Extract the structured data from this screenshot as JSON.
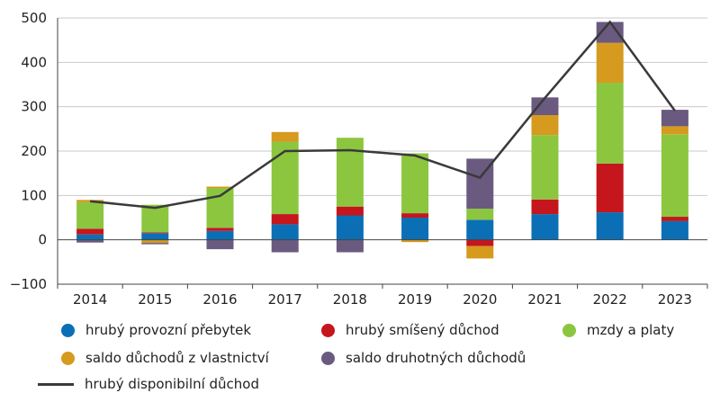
{
  "chart_data": {
    "type": "bar",
    "stacked": true,
    "title": "",
    "xlabel": "",
    "ylabel": "",
    "categories": [
      "2014",
      "2015",
      "2016",
      "2017",
      "2018",
      "2019",
      "2020",
      "2021",
      "2022",
      "2023"
    ],
    "ylim": [
      -100,
      500
    ],
    "yticks": [
      -100,
      0,
      100,
      200,
      300,
      400,
      500
    ],
    "grid": true,
    "legend_position": "bottom",
    "series": [
      {
        "name": "hrubý provozní přebytek",
        "color": "#0b6fb6",
        "values": [
          12,
          15,
          20,
          35,
          55,
          50,
          45,
          58,
          62,
          42
        ]
      },
      {
        "name": "hrubý smíšený důchod",
        "color": "#c5161d",
        "values": [
          13,
          2,
          7,
          23,
          20,
          10,
          -14,
          33,
          110,
          10
        ]
      },
      {
        "name": "mzdy a platy",
        "color": "#8cc63f",
        "values": [
          60,
          62,
          90,
          163,
          155,
          135,
          25,
          145,
          182,
          186
        ]
      },
      {
        "name": "saldo důchodů z vlastnictví",
        "color": "#d69a1e",
        "values": [
          5,
          -7,
          3,
          22,
          0,
          -5,
          -28,
          45,
          90,
          18
        ]
      },
      {
        "name": "saldo druhotných důchodů",
        "color": "#6a5a80",
        "values": [
          -6,
          -3,
          -21,
          -28,
          -28,
          0,
          113,
          40,
          47,
          37
        ]
      }
    ],
    "line": {
      "name": "hrubý disponibilní důchod",
      "color": "#3a3a3a",
      "values": [
        87,
        72,
        99,
        200,
        202,
        190,
        140,
        320,
        491,
        291
      ]
    }
  }
}
